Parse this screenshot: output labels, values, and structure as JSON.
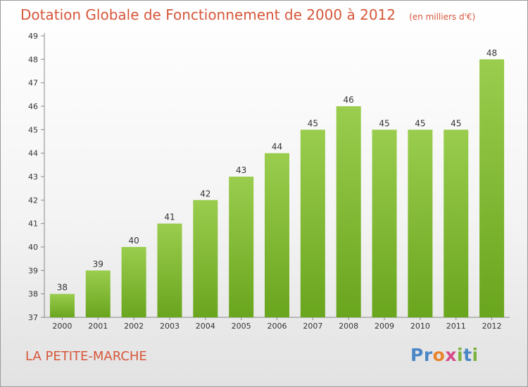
{
  "title": "Dotation Globale de Fonctionnement de 2000 à 2012",
  "unit": "(en milliers d'€)",
  "commune": "LA PETITE-MARCHE",
  "logo": {
    "text": "Proxiti"
  },
  "colors": {
    "title": "#d6573a",
    "bar_top": "#9acd4e",
    "bar_bottom": "#6aa51e"
  },
  "chart_data": {
    "type": "bar",
    "categories": [
      "2000",
      "2001",
      "2002",
      "2003",
      "2004",
      "2005",
      "2006",
      "2007",
      "2008",
      "2009",
      "2010",
      "2011",
      "2012"
    ],
    "values": [
      38,
      39,
      40,
      41,
      42,
      43,
      44,
      45,
      46,
      45,
      45,
      45,
      48
    ],
    "ylim": [
      37,
      49
    ],
    "yticks": [
      37,
      38,
      39,
      40,
      41,
      42,
      43,
      44,
      45,
      46,
      47,
      48,
      49
    ],
    "grid": false,
    "data_labels": true
  }
}
